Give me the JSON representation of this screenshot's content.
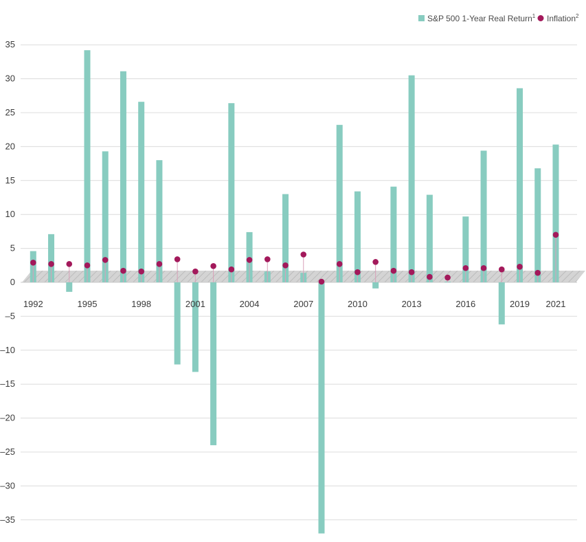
{
  "colors": {
    "bar": "#88ccc0",
    "dot": "#a3195b",
    "stem": "#d8a0b8",
    "grid": "#dcdcdc",
    "band": "#d4d4d4",
    "hatch": "#bcbcbc",
    "text": "#3a3a3a"
  },
  "legend": {
    "returns_label": "S&P 500 1-Year Real Return",
    "returns_sup": "1",
    "inflation_label": "Inflation",
    "inflation_sup": "2"
  },
  "chart_data": {
    "type": "bar",
    "xlabel": "",
    "ylabel": "",
    "ylim": [
      -37,
      35
    ],
    "yticks": [
      35,
      30,
      25,
      20,
      15,
      10,
      5,
      0,
      -5,
      -10,
      -15,
      -20,
      -25,
      -30,
      -35
    ],
    "ytick_labels": [
      "35",
      "30",
      "25",
      "20",
      "15",
      "10",
      "5",
      "0",
      "–5",
      "–10",
      "–15",
      "–20",
      "–25",
      "–30",
      "–35"
    ],
    "grid": true,
    "legend_position": "top-right",
    "categories": [
      1992,
      1993,
      1994,
      1995,
      1996,
      1997,
      1998,
      1999,
      2000,
      2001,
      2002,
      2003,
      2004,
      2005,
      2006,
      2007,
      2008,
      2009,
      2010,
      2011,
      2012,
      2013,
      2014,
      2015,
      2016,
      2017,
      2018,
      2019,
      2020,
      2021
    ],
    "xtick_labels": [
      "1992",
      "1995",
      "1998",
      "2001",
      "2004",
      "2007",
      "2010",
      "2013",
      "2016",
      "2019",
      "2021"
    ],
    "series": [
      {
        "name": "S&P 500 1-Year Real Return",
        "kind": "bar",
        "values": [
          4.6,
          7.1,
          -1.4,
          34.2,
          19.3,
          31.1,
          26.6,
          18.0,
          -12.1,
          -13.2,
          -24.0,
          26.4,
          7.4,
          1.6,
          13.0,
          1.4,
          -37.0,
          23.2,
          13.4,
          -0.9,
          14.1,
          30.5,
          12.9,
          0.1,
          9.7,
          19.4,
          -6.2,
          28.6,
          16.8,
          20.3
        ]
      },
      {
        "name": "Inflation",
        "kind": "dot",
        "values": [
          2.9,
          2.7,
          2.7,
          2.5,
          3.3,
          1.7,
          1.6,
          2.7,
          3.4,
          1.6,
          2.4,
          1.9,
          3.3,
          3.4,
          2.5,
          4.1,
          0.1,
          2.7,
          1.5,
          3.0,
          1.7,
          1.5,
          0.8,
          0.7,
          2.1,
          2.1,
          1.9,
          2.3,
          1.4,
          7.0
        ]
      }
    ]
  }
}
